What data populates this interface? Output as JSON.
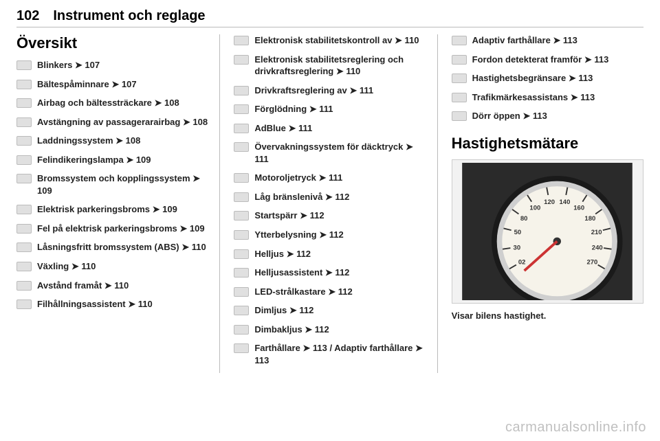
{
  "header": {
    "page_number": "102",
    "chapter": "Instrument och reglage"
  },
  "section_title": "Översikt",
  "arrow_glyph": "➤",
  "col1": [
    {
      "label": "Blinkers ➤ 107"
    },
    {
      "label": "Bältespåminnare ➤ 107"
    },
    {
      "label": "Airbag och bältessträckare ➤ 108"
    },
    {
      "label": "Avstängning av passagerarairbag ➤ 108"
    },
    {
      "label": "Laddningssystem ➤ 108"
    },
    {
      "label": "Felindikeringslampa ➤ 109"
    },
    {
      "label": "Bromssystem och kopplingssystem ➤ 109"
    },
    {
      "label": "Elektrisk parkeringsbroms ➤ 109"
    },
    {
      "label": "Fel på elektrisk parkeringsbroms ➤ 109"
    },
    {
      "label": "Låsningsfritt bromssystem (ABS) ➤ 110"
    },
    {
      "label": "Växling ➤ 110"
    },
    {
      "label": "Avstånd framåt ➤ 110"
    },
    {
      "label": "Filhållningsassistent ➤ 110"
    }
  ],
  "col2": [
    {
      "label": "Elektronisk stabilitetskontroll av ➤ 110"
    },
    {
      "label": "Elektronisk stabilitetsreglering och drivkraftsreglering ➤ 110"
    },
    {
      "label": "Drivkraftsreglering av ➤ 111"
    },
    {
      "label": "Förglödning ➤ 111"
    },
    {
      "label": "AdBlue ➤ 111"
    },
    {
      "label": "Övervakningssystem för däcktryck ➤ 111"
    },
    {
      "label": "Motoroljetryck ➤ 111"
    },
    {
      "label": "Låg bränslenivå ➤ 112"
    },
    {
      "label": "Startspärr ➤ 112"
    },
    {
      "label": "Ytterbelysning ➤ 112"
    },
    {
      "label": "Helljus ➤ 112"
    },
    {
      "label": "Helljusassistent ➤ 112"
    },
    {
      "label": "LED-strålkastare ➤ 112"
    },
    {
      "label": "Dimljus ➤ 112"
    },
    {
      "label": "Dimbakljus ➤ 112"
    },
    {
      "label": "Farthållare ➤ 113 / Adaptiv farthållare ➤ 113"
    }
  ],
  "col3_top": [
    {
      "label": "Adaptiv farthållare ➤ 113"
    },
    {
      "label": "Fordon detekterat framför ➤ 113"
    },
    {
      "label": "Hastighetsbegränsare ➤ 113"
    },
    {
      "label": "Trafikmärkesassistans ➤ 113"
    },
    {
      "label": "Dörr öppen ➤ 113"
    }
  ],
  "speedometer": {
    "heading": "Hastighetsmätare",
    "caption": "Visar bilens hastighet.",
    "tick_labels": [
      "02",
      "30",
      "50",
      "80",
      "100",
      "120",
      "140",
      "160",
      "180",
      "210",
      "240",
      "270"
    ],
    "face_color": "#f6f3ea",
    "rim_outer": "#2b2b2b",
    "rim_inner": "#cfcfcf",
    "bg_color": "#2a2a2a"
  },
  "watermark": "carmanualsonline.info"
}
